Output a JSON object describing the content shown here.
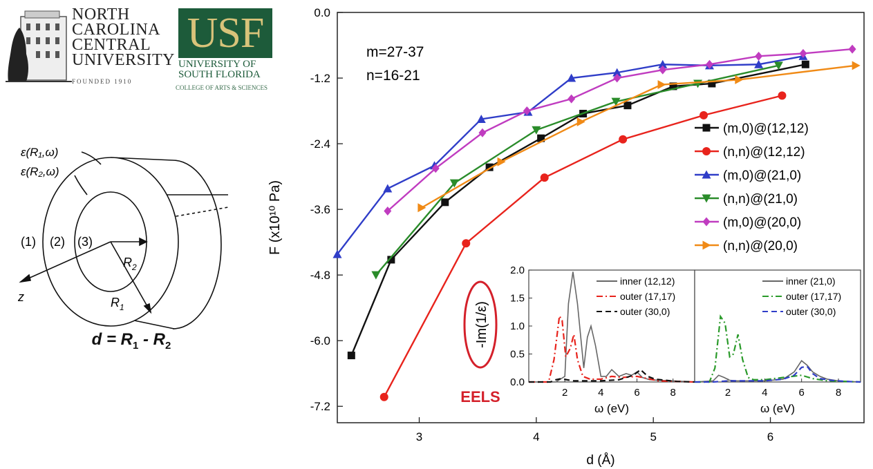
{
  "logos": {
    "nccu": {
      "line1": "NORTH",
      "line2": "CAROLINA",
      "line3": "CENTRAL",
      "line4": "UNIVERSITY",
      "founded": "FOUNDED 1910"
    },
    "usf": {
      "mark": "USF",
      "line1": "UNIVERSITY OF",
      "line2": "SOUTH FLORIDA",
      "line3": "COLLEGE OF ARTS & SCIENCES"
    }
  },
  "diagram": {
    "eps1": "ε(R₁,ω)",
    "eps2": "ε(R₂,ω)",
    "region1": "(1)",
    "region2": "(2)",
    "region3": "(3)",
    "r2": "R",
    "r2_sub": "2",
    "r1": "R",
    "r1_sub": "1",
    "axis_z": "z",
    "formula_d": "d",
    "formula_eq": " = ",
    "formula_r1": "R",
    "formula_r1_sub": "1",
    "formula_minus": " - ",
    "formula_r2": "R",
    "formula_r2_sub": "2"
  },
  "chart_data": [
    {
      "type": "line",
      "title": "",
      "xlabel": "d (Å)",
      "ylabel": "F (x10¹⁰ Pa)",
      "xlim": [
        2.3,
        6.8
      ],
      "ylim": [
        -7.5,
        0.0
      ],
      "xticks": [
        "3",
        "4",
        "5",
        "6"
      ],
      "yticks": [
        "0.0",
        "-1.2",
        "-2.4",
        "-3.6",
        "-4.8",
        "-6.0",
        "-7.2"
      ],
      "annotation": [
        "m=27-37",
        "n=16-21"
      ],
      "legend_position": "right",
      "series": [
        {
          "name": "(m,0)@(12,12)",
          "color": "#111111",
          "marker": "square",
          "x": [
            2.42,
            2.76,
            3.22,
            3.6,
            4.04,
            4.4,
            4.78,
            5.17,
            5.5,
            6.3
          ],
          "y": [
            -6.27,
            -4.52,
            -3.47,
            -2.83,
            -2.3,
            -1.85,
            -1.7,
            -1.35,
            -1.3,
            -0.95
          ]
        },
        {
          "name": "(n,n)@(12,12)",
          "color": "#e8231c",
          "marker": "circle",
          "x": [
            2.7,
            3.4,
            4.07,
            4.74,
            5.43,
            6.1
          ],
          "y": [
            -7.03,
            -4.22,
            -3.02,
            -2.32,
            -1.88,
            -1.52
          ]
        },
        {
          "name": "(m,0)@(21,0)",
          "color": "#2f3dc8",
          "marker": "triangle-up",
          "x": [
            2.3,
            2.73,
            3.13,
            3.53,
            3.93,
            4.3,
            4.69,
            5.08,
            5.48,
            5.9,
            6.28
          ],
          "y": [
            -4.42,
            -3.22,
            -2.8,
            -1.95,
            -1.82,
            -1.2,
            -1.1,
            -0.95,
            -0.97,
            -0.95,
            -0.8
          ]
        },
        {
          "name": "(n,n)@(21,0)",
          "color": "#2a8c2a",
          "marker": "triangle-down",
          "x": [
            2.63,
            3.3,
            4.0,
            4.68,
            5.38,
            6.07
          ],
          "y": [
            -4.8,
            -3.12,
            -2.15,
            -1.63,
            -1.3,
            -0.97
          ]
        },
        {
          "name": "(m,0)@(20,0)",
          "color": "#c03cc0",
          "marker": "diamond",
          "x": [
            2.73,
            3.14,
            3.54,
            3.92,
            4.3,
            4.69,
            5.08,
            5.48,
            5.9,
            6.28,
            6.7
          ],
          "y": [
            -3.63,
            -2.85,
            -2.2,
            -1.8,
            -1.58,
            -1.2,
            -1.05,
            -0.95,
            -0.8,
            -0.75,
            -0.67
          ]
        },
        {
          "name": "(n,n)@(20,0)",
          "color": "#f08a16",
          "marker": "triangle-right",
          "x": [
            3.02,
            3.7,
            4.38,
            5.07,
            5.73,
            6.73
          ],
          "y": [
            -3.57,
            -2.73,
            -2.0,
            -1.32,
            -1.23,
            -0.97
          ]
        }
      ]
    },
    {
      "type": "line",
      "title": "",
      "xlabel": "ω (eV)",
      "ylabel": "-Im(1/ε)",
      "ylabel_callout": "EELS",
      "xlim": [
        0,
        9.2
      ],
      "ylim": [
        0,
        2.0
      ],
      "xticks": [
        "2",
        "4",
        "6",
        "8"
      ],
      "yticks": [
        "0.0",
        "0.5",
        "1.0",
        "1.5",
        "2.0"
      ],
      "series": [
        {
          "name": "inner (12,12)",
          "color": "#666666",
          "style": "solid",
          "x": [
            0.0,
            1.5,
            2.0,
            2.2,
            2.45,
            2.7,
            3.05,
            3.25,
            3.45,
            3.7,
            4.0,
            4.3,
            4.6,
            5.0,
            5.4,
            5.7,
            6.0,
            6.3,
            6.7,
            7.2,
            8.0,
            9.2
          ],
          "y": [
            0.0,
            0.0,
            0.1,
            1.4,
            1.97,
            1.4,
            0.25,
            0.8,
            1.0,
            0.65,
            0.1,
            0.1,
            0.22,
            0.1,
            0.15,
            0.12,
            0.18,
            0.08,
            0.04,
            0.03,
            0.02,
            0.0
          ]
        },
        {
          "name": "outer (17,17)",
          "color": "#e8231c",
          "style": "dashdot",
          "x": [
            0.0,
            1.1,
            1.4,
            1.7,
            1.85,
            2.05,
            2.3,
            2.5,
            2.7,
            3.0,
            3.4,
            4.0,
            4.6,
            5.2,
            6.0,
            6.6,
            7.2,
            9.2
          ],
          "y": [
            0.0,
            0.0,
            0.4,
            1.18,
            1.1,
            0.45,
            0.6,
            0.85,
            0.4,
            0.1,
            0.05,
            0.05,
            0.1,
            0.08,
            0.1,
            0.06,
            0.02,
            0.0
          ]
        },
        {
          "name": "outer (30,0)",
          "color": "#111111",
          "style": "dashed",
          "x": [
            0.0,
            1.2,
            1.5,
            1.8,
            2.1,
            2.5,
            3.0,
            4.0,
            5.0,
            5.8,
            6.2,
            6.6,
            7.0,
            7.6,
            8.2,
            9.2
          ],
          "y": [
            0.0,
            0.0,
            0.04,
            0.06,
            0.04,
            0.02,
            0.02,
            0.02,
            0.04,
            0.12,
            0.22,
            0.1,
            0.05,
            0.03,
            0.01,
            0.0
          ]
        }
      ]
    },
    {
      "type": "line",
      "title": "",
      "xlabel": "ω (eV)",
      "xlim": [
        0.2,
        9.2
      ],
      "ylim": [
        0,
        2.0
      ],
      "xticks": [
        "2",
        "4",
        "6",
        "8"
      ],
      "series": [
        {
          "name": "inner (21,0)",
          "color": "#666666",
          "style": "solid",
          "x": [
            0.2,
            1.2,
            1.5,
            1.8,
            2.1,
            2.5,
            3.0,
            4.0,
            5.0,
            5.6,
            6.0,
            6.3,
            6.6,
            7.0,
            7.4,
            8.0,
            9.2
          ],
          "y": [
            0.0,
            0.02,
            0.12,
            0.08,
            0.03,
            0.02,
            0.02,
            0.02,
            0.05,
            0.18,
            0.38,
            0.3,
            0.18,
            0.1,
            0.05,
            0.02,
            0.0
          ]
        },
        {
          "name": "outer (17,17)",
          "color": "#2a9a2a",
          "style": "dashdot",
          "x": [
            0.2,
            1.0,
            1.3,
            1.6,
            1.85,
            2.1,
            2.3,
            2.55,
            2.8,
            3.1,
            3.4,
            4.0,
            5.0,
            6.0,
            6.6,
            7.4,
            9.2
          ],
          "y": [
            0.0,
            0.0,
            0.25,
            1.17,
            1.05,
            0.45,
            0.5,
            0.85,
            0.4,
            0.08,
            0.04,
            0.04,
            0.08,
            0.12,
            0.06,
            0.02,
            0.0
          ]
        },
        {
          "name": "outer (30,0)",
          "color": "#2f3dc8",
          "style": "dashed",
          "x": [
            0.2,
            1.2,
            2.0,
            3.0,
            4.0,
            5.0,
            5.6,
            6.0,
            6.3,
            6.6,
            7.0,
            7.6,
            8.4,
            9.2
          ],
          "y": [
            0.0,
            0.0,
            0.02,
            0.02,
            0.02,
            0.05,
            0.12,
            0.26,
            0.28,
            0.15,
            0.06,
            0.03,
            0.01,
            0.0
          ]
        }
      ]
    }
  ]
}
